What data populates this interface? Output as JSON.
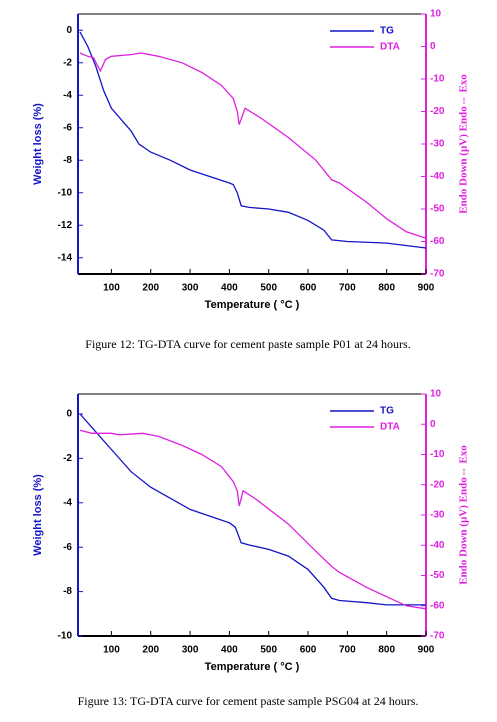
{
  "chart_data": [
    {
      "type": "line",
      "caption": "Figure 12: TG-DTA curve for cement paste sample P01 at 24 hours.",
      "x_label": "Temperature ( °C )",
      "y_label": "Weight loss (%)",
      "y2_label": "Endo Down (µV) Endo⇔ Exo",
      "xlim": [
        15,
        900
      ],
      "xticks": [
        100,
        200,
        300,
        400,
        500,
        600,
        700,
        800,
        900
      ],
      "ylim": [
        -15,
        1
      ],
      "yticks": [
        0,
        -2,
        -4,
        -6,
        -8,
        -10,
        -12,
        -14
      ],
      "y2lim": [
        -70,
        10
      ],
      "y2ticks": [
        10,
        0,
        -10,
        -20,
        -30,
        -40,
        -50,
        -60,
        -70
      ],
      "legend": "upper right",
      "series": [
        {
          "name": "TG",
          "color": "#1414c8",
          "x": [
            20,
            40,
            60,
            80,
            100,
            150,
            170,
            200,
            250,
            300,
            350,
            400,
            410,
            420,
            430,
            450,
            500,
            550,
            600,
            640,
            660,
            700,
            800,
            900
          ],
          "values": [
            -0.1,
            -1.0,
            -2.2,
            -3.7,
            -4.8,
            -6.2,
            -7.0,
            -7.5,
            -8.0,
            -8.6,
            -9.0,
            -9.4,
            -9.5,
            -10.0,
            -10.8,
            -10.9,
            -11.0,
            -11.2,
            -11.7,
            -12.3,
            -12.9,
            -13.0,
            -13.1,
            -13.4
          ]
        },
        {
          "name": "DTA",
          "color": "#e020e0",
          "axis": "y2",
          "x": [
            20,
            40,
            55,
            65,
            72,
            85,
            100,
            150,
            175,
            220,
            280,
            330,
            380,
            410,
            420,
            425,
            440,
            480,
            550,
            620,
            660,
            680,
            750,
            800,
            850,
            900
          ],
          "values": [
            -2,
            -3,
            -3.5,
            -6,
            -7.5,
            -4,
            -3,
            -2.5,
            -2,
            -3,
            -5,
            -8,
            -12,
            -16,
            -20,
            -24,
            -19,
            -22,
            -28,
            -35,
            -41,
            -42,
            -48,
            -53,
            -57,
            -59
          ]
        }
      ]
    },
    {
      "type": "line",
      "caption": "Figure 13: TG-DTA curve for cement paste sample PSG04 at 24 hours.",
      "x_label": "Temperature ( °C )",
      "y_label": "Weight loss (%)",
      "y2_label": "Endo Down (µV) Endo⇔ Exo",
      "xlim": [
        15,
        900
      ],
      "xticks": [
        100,
        200,
        300,
        400,
        500,
        600,
        700,
        800,
        900
      ],
      "ylim": [
        -10,
        0.9
      ],
      "yticks": [
        0,
        -2,
        -4,
        -6,
        -8,
        -10
      ],
      "y2lim": [
        -70,
        10
      ],
      "y2ticks": [
        10,
        0,
        -10,
        -20,
        -30,
        -40,
        -50,
        -60,
        -70
      ],
      "legend": "upper right",
      "series": [
        {
          "name": "TG",
          "color": "#1414c8",
          "x": [
            20,
            50,
            100,
            150,
            200,
            250,
            300,
            350,
            400,
            415,
            430,
            450,
            500,
            550,
            600,
            640,
            660,
            680,
            750,
            800,
            900
          ],
          "values": [
            0,
            -0.6,
            -1.6,
            -2.6,
            -3.3,
            -3.8,
            -4.3,
            -4.6,
            -4.9,
            -5.1,
            -5.8,
            -5.9,
            -6.1,
            -6.4,
            -7.0,
            -7.8,
            -8.3,
            -8.4,
            -8.5,
            -8.6,
            -8.6
          ]
        },
        {
          "name": "DTA",
          "color": "#e020e0",
          "axis": "y2",
          "x": [
            20,
            50,
            100,
            120,
            180,
            220,
            280,
            330,
            380,
            410,
            420,
            425,
            435,
            470,
            550,
            620,
            660,
            680,
            750,
            800,
            850,
            900
          ],
          "values": [
            -2,
            -3,
            -3,
            -3.5,
            -3,
            -4,
            -7,
            -10,
            -14,
            -19,
            -22,
            -27,
            -22,
            -25,
            -33,
            -42,
            -47,
            -49,
            -54,
            -57,
            -60,
            -61
          ]
        }
      ]
    }
  ]
}
